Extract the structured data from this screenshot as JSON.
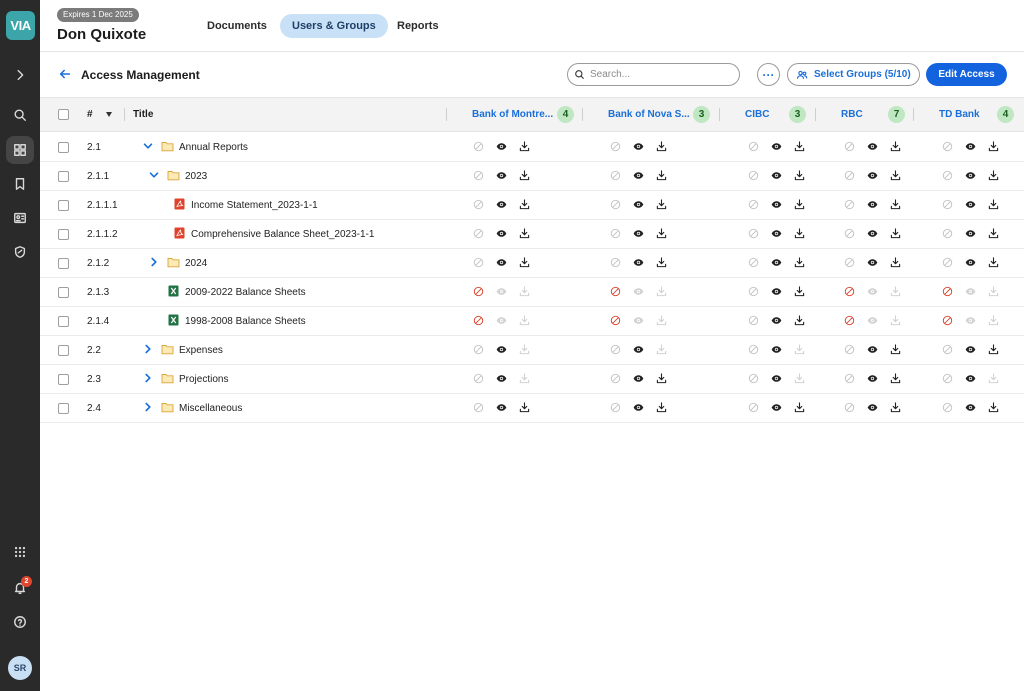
{
  "app": {
    "logo_text": "VIA"
  },
  "header": {
    "expires": "Expires 1 Dec 2025",
    "project": "Don Quixote",
    "tabs": [
      {
        "label": "Documents",
        "active": false
      },
      {
        "label": "Users & Groups",
        "active": true
      },
      {
        "label": "Reports",
        "active": false
      }
    ]
  },
  "rail": {
    "notification_count": "2",
    "avatar_initials": "SR"
  },
  "subbar": {
    "title": "Access Management",
    "search_placeholder": "Search...",
    "more_label": "···",
    "select_groups": "Select Groups (5/10)",
    "edit_access": "Edit Access"
  },
  "table": {
    "col_num": "#",
    "col_title": "Title",
    "groups": [
      {
        "name": "Bank of Montre...",
        "count": "4"
      },
      {
        "name": "Bank of Nova S...",
        "count": "3"
      },
      {
        "name": "CIBC",
        "count": "3"
      },
      {
        "name": "RBC",
        "count": "7"
      },
      {
        "name": "TD Bank",
        "count": "4"
      }
    ],
    "rows": [
      {
        "num": "2.1",
        "title": "Annual Reports",
        "type": "folder",
        "level": 0,
        "expanded": true,
        "access": [
          "yes",
          "yes",
          "yes",
          "yes",
          "yes"
        ]
      },
      {
        "num": "2.1.1",
        "title": "2023",
        "type": "folder",
        "level": 1,
        "expanded": true,
        "access": [
          "yes",
          "yes",
          "yes",
          "yes",
          "yes"
        ]
      },
      {
        "num": "2.1.1.1",
        "title": "Income Statement_2023-1-1",
        "type": "pdf",
        "level": 2,
        "access": [
          "yes",
          "yes",
          "yes",
          "yes",
          "yes"
        ]
      },
      {
        "num": "2.1.1.2",
        "title": "Comprehensive Balance Sheet_2023-1-1",
        "type": "pdf",
        "level": 2,
        "access": [
          "yes",
          "yes",
          "yes",
          "yes",
          "yes"
        ]
      },
      {
        "num": "2.1.2",
        "title": "2024",
        "type": "folder",
        "level": 1,
        "expanded": false,
        "access": [
          "yes",
          "yes",
          "yes",
          "yes",
          "yes"
        ]
      },
      {
        "num": "2.1.3",
        "title": "2009-2022 Balance Sheets",
        "type": "excel",
        "level": 1,
        "access": [
          "blocked",
          "blocked",
          "yes",
          "blocked",
          "blocked"
        ]
      },
      {
        "num": "2.1.4",
        "title": "1998-2008 Balance Sheets",
        "type": "excel",
        "level": 1,
        "access": [
          "blocked",
          "blocked",
          "yes",
          "blocked",
          "blocked"
        ]
      },
      {
        "num": "2.2",
        "title": "Expenses",
        "type": "folder",
        "level": 0,
        "expanded": false,
        "access": [
          "view",
          "view",
          "view",
          "yes",
          "yes"
        ]
      },
      {
        "num": "2.3",
        "title": "Projections",
        "type": "folder",
        "level": 0,
        "expanded": false,
        "access": [
          "view",
          "yes",
          "view",
          "yes",
          "view"
        ]
      },
      {
        "num": "2.4",
        "title": "Miscellaneous",
        "type": "folder",
        "level": 0,
        "expanded": false,
        "access": [
          "yes",
          "yes",
          "yes",
          "yes",
          "yes"
        ]
      }
    ]
  },
  "colors": {
    "accent": "#1a6fd8",
    "primary_button": "#1363df",
    "blocked": "#d9412a",
    "folder": "#e8b84a",
    "pdf": "#e0432d",
    "excel": "#217346"
  }
}
